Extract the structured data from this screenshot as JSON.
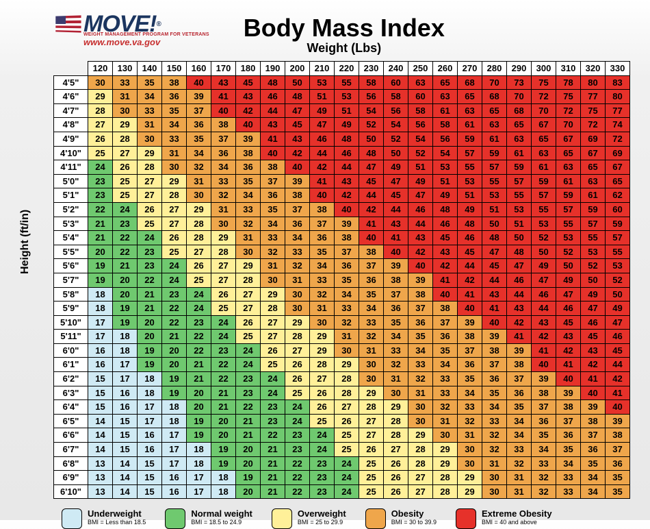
{
  "brand": {
    "name": "MOVE!",
    "tagline": "WEIGHT MANAGEMENT PROGRAM FOR VETERANS",
    "url": "www.move.va.gov"
  },
  "title": "Body Mass Index",
  "subtitle": "Weight (Lbs)",
  "y_axis_label": "Height (ft/in)",
  "colors": {
    "underweight": "#cfeaf4",
    "normal": "#6fc96f",
    "overweight": "#fff099",
    "obesity": "#efa64b",
    "extreme": "#e6312a",
    "row_header_bg": "#ffffff",
    "col_header_bg": "#ffffff",
    "border": "#000000"
  },
  "thresholds": {
    "underweight_max": 18.4,
    "normal_max": 24.9,
    "overweight_max": 29.9,
    "obesity_max": 39.9
  },
  "weights": [
    120,
    130,
    140,
    150,
    160,
    170,
    180,
    190,
    200,
    210,
    220,
    230,
    240,
    250,
    260,
    270,
    280,
    290,
    300,
    310,
    320,
    330
  ],
  "heights": [
    "4'5\"",
    "4'6\"",
    "4'7\"",
    "4'8\"",
    "4'9\"",
    "4'10\"",
    "4'11\"",
    "5'0\"",
    "5'1\"",
    "5'2\"",
    "5'3\"",
    "5'4\"",
    "5'5\"",
    "5'6\"",
    "5'7\"",
    "5'8\"",
    "5'9\"",
    "5'10\"",
    "5'11\"",
    "6'0\"",
    "6'1\"",
    "6'2\"",
    "6'3\"",
    "6'4\"",
    "6'5\"",
    "6'6\"",
    "6'7\"",
    "6'8\"",
    "6'9\"",
    "6'10\""
  ],
  "bmi": [
    [
      30,
      33,
      35,
      38,
      40,
      43,
      45,
      48,
      50,
      53,
      55,
      58,
      60,
      63,
      65,
      68,
      70,
      73,
      75,
      78,
      80,
      83
    ],
    [
      29,
      31,
      34,
      36,
      39,
      41,
      43,
      46,
      48,
      51,
      53,
      56,
      58,
      60,
      63,
      65,
      68,
      70,
      72,
      75,
      77,
      80
    ],
    [
      28,
      30,
      33,
      35,
      37,
      40,
      42,
      44,
      47,
      49,
      51,
      54,
      56,
      58,
      61,
      63,
      65,
      68,
      70,
      72,
      75,
      77
    ],
    [
      27,
      29,
      31,
      34,
      36,
      38,
      40,
      43,
      45,
      47,
      49,
      52,
      54,
      56,
      58,
      61,
      63,
      65,
      67,
      70,
      72,
      74
    ],
    [
      26,
      28,
      30,
      33,
      35,
      37,
      39,
      41,
      43,
      46,
      48,
      50,
      52,
      54,
      56,
      59,
      61,
      63,
      65,
      67,
      69,
      72
    ],
    [
      25,
      27,
      29,
      31,
      34,
      36,
      38,
      40,
      42,
      44,
      46,
      48,
      50,
      52,
      54,
      57,
      59,
      61,
      63,
      65,
      67,
      69
    ],
    [
      24,
      26,
      28,
      30,
      32,
      34,
      36,
      38,
      40,
      42,
      44,
      47,
      49,
      51,
      53,
      55,
      57,
      59,
      61,
      63,
      65,
      67
    ],
    [
      23,
      25,
      27,
      29,
      31,
      33,
      35,
      37,
      39,
      41,
      43,
      45,
      47,
      49,
      51,
      53,
      55,
      57,
      59,
      61,
      63,
      65
    ],
    [
      23,
      25,
      27,
      28,
      30,
      32,
      34,
      36,
      38,
      40,
      42,
      44,
      45,
      47,
      49,
      51,
      53,
      55,
      57,
      59,
      61,
      62
    ],
    [
      22,
      24,
      26,
      27,
      29,
      31,
      33,
      35,
      37,
      38,
      40,
      42,
      44,
      46,
      48,
      49,
      51,
      53,
      55,
      57,
      59,
      60
    ],
    [
      21,
      23,
      25,
      27,
      28,
      30,
      32,
      34,
      36,
      37,
      39,
      41,
      43,
      44,
      46,
      48,
      50,
      51,
      53,
      55,
      57,
      59
    ],
    [
      21,
      22,
      24,
      26,
      28,
      29,
      31,
      33,
      34,
      36,
      38,
      40,
      41,
      43,
      45,
      46,
      48,
      50,
      52,
      53,
      55,
      57
    ],
    [
      20,
      22,
      23,
      25,
      27,
      28,
      30,
      32,
      33,
      35,
      37,
      38,
      40,
      42,
      43,
      45,
      47,
      48,
      50,
      52,
      53,
      55
    ],
    [
      19,
      21,
      23,
      24,
      26,
      27,
      29,
      31,
      32,
      34,
      36,
      37,
      39,
      40,
      42,
      44,
      45,
      47,
      49,
      50,
      52,
      53
    ],
    [
      19,
      20,
      22,
      24,
      25,
      27,
      28,
      30,
      31,
      33,
      35,
      36,
      38,
      39,
      41,
      42,
      44,
      46,
      47,
      49,
      50,
      52
    ],
    [
      18,
      20,
      21,
      23,
      24,
      26,
      27,
      29,
      30,
      32,
      34,
      35,
      37,
      38,
      40,
      41,
      43,
      44,
      46,
      47,
      49,
      50
    ],
    [
      18,
      19,
      21,
      22,
      24,
      25,
      27,
      28,
      30,
      31,
      33,
      34,
      36,
      37,
      38,
      40,
      41,
      43,
      44,
      46,
      47,
      49
    ],
    [
      17,
      19,
      20,
      22,
      23,
      24,
      26,
      27,
      29,
      30,
      32,
      33,
      35,
      36,
      37,
      39,
      40,
      42,
      43,
      45,
      46,
      47
    ],
    [
      17,
      18,
      20,
      21,
      22,
      24,
      25,
      27,
      28,
      29,
      31,
      32,
      34,
      35,
      36,
      38,
      39,
      41,
      42,
      43,
      45,
      46
    ],
    [
      16,
      18,
      19,
      20,
      22,
      23,
      24,
      26,
      27,
      29,
      30,
      31,
      33,
      34,
      35,
      37,
      38,
      39,
      41,
      42,
      43,
      45
    ],
    [
      16,
      17,
      19,
      20,
      21,
      22,
      24,
      25,
      26,
      28,
      29,
      30,
      32,
      33,
      34,
      36,
      37,
      38,
      40,
      41,
      42,
      44
    ],
    [
      15,
      17,
      18,
      19,
      21,
      22,
      23,
      24,
      26,
      27,
      28,
      30,
      31,
      32,
      33,
      35,
      36,
      37,
      39,
      40,
      41,
      42
    ],
    [
      15,
      16,
      18,
      19,
      20,
      21,
      23,
      24,
      25,
      26,
      28,
      29,
      30,
      31,
      33,
      34,
      35,
      36,
      38,
      39,
      40,
      41
    ],
    [
      15,
      16,
      17,
      18,
      20,
      21,
      22,
      23,
      24,
      26,
      27,
      28,
      29,
      30,
      32,
      33,
      34,
      35,
      37,
      38,
      39,
      40
    ],
    [
      14,
      15,
      17,
      18,
      19,
      20,
      21,
      23,
      24,
      25,
      26,
      27,
      28,
      30,
      31,
      32,
      33,
      34,
      36,
      37,
      38,
      39
    ],
    [
      14,
      15,
      16,
      17,
      19,
      20,
      21,
      22,
      23,
      24,
      25,
      27,
      28,
      29,
      30,
      31,
      32,
      34,
      35,
      36,
      37,
      38
    ],
    [
      14,
      15,
      16,
      17,
      18,
      19,
      20,
      21,
      23,
      24,
      25,
      26,
      27,
      28,
      29,
      30,
      32,
      33,
      34,
      35,
      36,
      37
    ],
    [
      13,
      14,
      15,
      17,
      18,
      19,
      20,
      21,
      22,
      23,
      24,
      25,
      26,
      28,
      29,
      30,
      31,
      32,
      33,
      34,
      35,
      36
    ],
    [
      13,
      14,
      15,
      16,
      17,
      18,
      19,
      21,
      22,
      23,
      24,
      25,
      26,
      27,
      28,
      29,
      30,
      31,
      32,
      33,
      34,
      35
    ],
    [
      13,
      14,
      15,
      16,
      17,
      18,
      20,
      21,
      22,
      23,
      24,
      25,
      26,
      27,
      28,
      29,
      30,
      31,
      32,
      33,
      34,
      35
    ]
  ],
  "legend": [
    {
      "key": "underweight",
      "title": "Underweight",
      "sub": "BMI = Less than 18.5"
    },
    {
      "key": "normal",
      "title": "Normal weight",
      "sub": "BMI = 18.5 to 24.9"
    },
    {
      "key": "overweight",
      "title": "Overweight",
      "sub": "BMI = 25 to 29.9"
    },
    {
      "key": "obesity",
      "title": "Obesity",
      "sub": "BMI = 30 to 39.9"
    },
    {
      "key": "extreme",
      "title": "Extreme Obesity",
      "sub": "BMI = 40 and above"
    }
  ]
}
